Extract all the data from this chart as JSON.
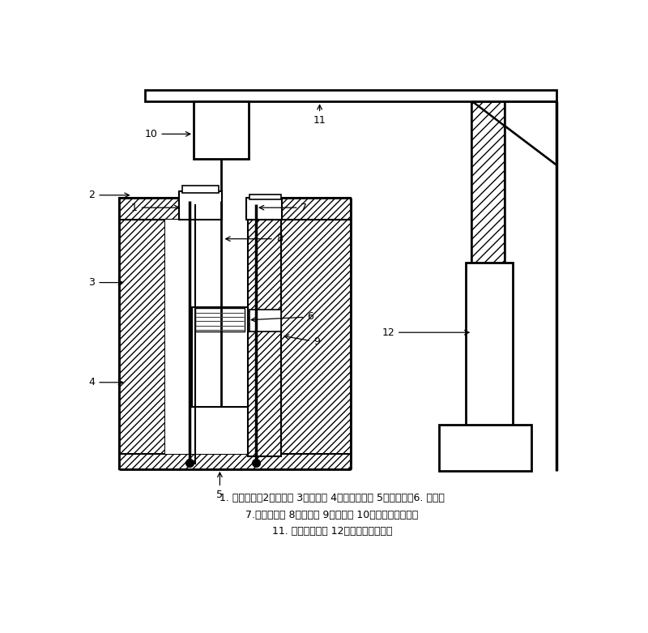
{
  "caption_line1": "1. 陶瓷坩埚盆2、观察孔 3、保温砖 4、硅钼棒热端 5、铂锅底垫6. 铂坩埚",
  "caption_line2": "7.硅钼棒冷端 8、籽晶杆 9、热电偶 10、籽晶杆旋转电机",
  "caption_line3": "11. 电机固定横梁 12、籽晶杆升降装置",
  "bg_color": "#ffffff",
  "lc": "#000000",
  "fig_width": 8.0,
  "fig_height": 7.81
}
